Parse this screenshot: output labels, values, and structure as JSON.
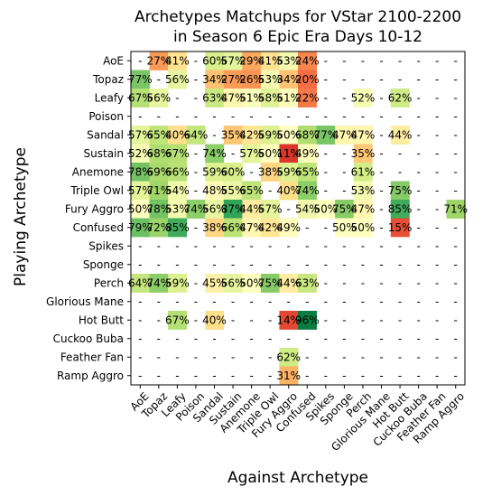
{
  "chart_data": {
    "type": "heatmap",
    "title": [
      "Archetypes Matchups for VStar 2100-2200",
      "in Season 6 Epic Era Days 10-12"
    ],
    "xlabel": "Against Archetype",
    "ylabel": "Playing Archetype",
    "colormap": "RdYlGn",
    "vmin": 0,
    "vmax": 100,
    "missing_label": "-",
    "rows": [
      "AoE",
      "Topaz",
      "Leafy",
      "Poison",
      "Sandal",
      "Sustain",
      "Anemone",
      "Triple Owl",
      "Fury Aggro",
      "Confused",
      "Spikes",
      "Sponge",
      "Perch",
      "Glorious Mane",
      "Hot Butt",
      "Cuckoo Buba",
      "Feather Fan",
      "Ramp Aggro"
    ],
    "columns": [
      "AoE",
      "Topaz",
      "Leafy",
      "Poison",
      "Sandal",
      "Sustain",
      "Anemone",
      "Triple Owl",
      "Fury Aggro",
      "Confused",
      "Spikes",
      "Sponge",
      "Perch",
      "Glorious Mane",
      "Hot Butt",
      "Cuckoo Buba",
      "Feather Fan",
      "Ramp Aggro"
    ],
    "values": [
      [
        null,
        27,
        41,
        null,
        60,
        57,
        29,
        41,
        53,
        24,
        null,
        null,
        null,
        null,
        null,
        null,
        null,
        null
      ],
      [
        77,
        null,
        56,
        null,
        34,
        27,
        26,
        53,
        34,
        20,
        null,
        null,
        null,
        null,
        null,
        null,
        null,
        null
      ],
      [
        67,
        56,
        null,
        null,
        63,
        47,
        51,
        58,
        51,
        22,
        null,
        null,
        52,
        null,
        62,
        null,
        null,
        null
      ],
      [
        null,
        null,
        null,
        null,
        null,
        null,
        null,
        null,
        null,
        null,
        null,
        null,
        null,
        null,
        null,
        null,
        null,
        null
      ],
      [
        57,
        65,
        40,
        64,
        null,
        35,
        42,
        59,
        50,
        68,
        77,
        47,
        47,
        null,
        44,
        null,
        null,
        null
      ],
      [
        52,
        68,
        67,
        null,
        74,
        null,
        57,
        50,
        11,
        49,
        null,
        null,
        35,
        null,
        null,
        null,
        null,
        null
      ],
      [
        78,
        69,
        66,
        null,
        59,
        60,
        null,
        38,
        59,
        65,
        null,
        null,
        61,
        null,
        null,
        null,
        null,
        null
      ],
      [
        57,
        71,
        54,
        null,
        48,
        55,
        65,
        null,
        40,
        74,
        null,
        null,
        53,
        null,
        75,
        null,
        null,
        null
      ],
      [
        50,
        78,
        53,
        74,
        56,
        87,
        44,
        57,
        null,
        54,
        50,
        75,
        47,
        null,
        85,
        null,
        null,
        71
      ],
      [
        79,
        72,
        85,
        null,
        38,
        66,
        47,
        42,
        49,
        null,
        null,
        50,
        50,
        null,
        15,
        null,
        null,
        null
      ],
      [
        null,
        null,
        null,
        null,
        null,
        null,
        null,
        null,
        null,
        null,
        null,
        null,
        null,
        null,
        null,
        null,
        null,
        null
      ],
      [
        null,
        null,
        null,
        null,
        null,
        null,
        null,
        null,
        null,
        null,
        null,
        null,
        null,
        null,
        null,
        null,
        null,
        null
      ],
      [
        64,
        74,
        59,
        null,
        45,
        56,
        50,
        75,
        44,
        63,
        null,
        null,
        null,
        null,
        null,
        null,
        null,
        null
      ],
      [
        null,
        null,
        null,
        null,
        null,
        null,
        null,
        null,
        null,
        null,
        null,
        null,
        null,
        null,
        null,
        null,
        null,
        null
      ],
      [
        null,
        null,
        67,
        null,
        40,
        null,
        null,
        null,
        14,
        96,
        null,
        null,
        null,
        null,
        null,
        null,
        null,
        null
      ],
      [
        null,
        null,
        null,
        null,
        null,
        null,
        null,
        null,
        null,
        null,
        null,
        null,
        null,
        null,
        null,
        null,
        null,
        null
      ],
      [
        null,
        null,
        null,
        null,
        null,
        null,
        null,
        null,
        62,
        null,
        null,
        null,
        null,
        null,
        null,
        null,
        null,
        null
      ],
      [
        null,
        null,
        null,
        null,
        null,
        null,
        null,
        null,
        31,
        null,
        null,
        null,
        null,
        null,
        null,
        null,
        null,
        null
      ]
    ]
  }
}
